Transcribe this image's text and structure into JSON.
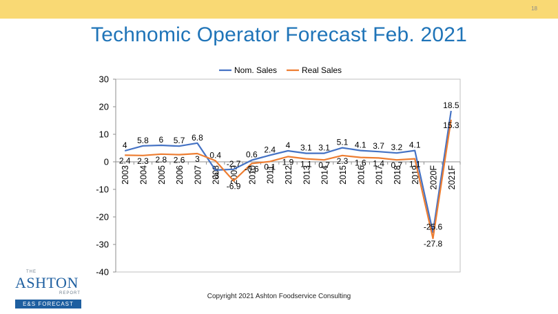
{
  "slide": {
    "page_number": "18",
    "title": "Technomic Operator Forecast Feb. 2021",
    "copyright": "Copyright 2021 Ashton Foodservice Consulting"
  },
  "logo": {
    "the": "THE",
    "name": "ASHTON",
    "report": "REPORT",
    "tagline": "E&S FORECAST"
  },
  "colors": {
    "top_bar": "#F9D974",
    "title": "#1F74B8",
    "nom_sales": "#4472C4",
    "real_sales": "#ED7D31"
  },
  "chart_data": {
    "type": "line",
    "title": "",
    "xlabel": "",
    "ylabel": "",
    "ylim": [
      -40,
      30
    ],
    "yticks": [
      30,
      20,
      10,
      0,
      -10,
      -20,
      -30,
      -40
    ],
    "legend_position": "top",
    "categories": [
      "2003",
      "2004",
      "2005",
      "2006",
      "2007",
      "2008",
      "2009",
      "2010",
      "2011",
      "2012",
      "2013",
      "2014",
      "2015",
      "2016",
      "2017",
      "2018",
      "2019",
      "2020F",
      "2021F"
    ],
    "series": [
      {
        "name": "Nom. Sales",
        "color": "#4472C4",
        "values": [
          4,
          5.8,
          6,
          5.7,
          6.8,
          -3,
          -2.7,
          0.6,
          2.4,
          4,
          3.1,
          3.1,
          5.1,
          4.1,
          3.7,
          3.2,
          4.1,
          -25.6,
          18.5
        ],
        "labels": [
          "4",
          "5.8",
          "6",
          "5.7",
          "6.8",
          "-3",
          "-2.7",
          "0.6",
          "2.4",
          "4",
          "3.1",
          "3.1",
          "5.1",
          "4.1",
          "3.7",
          "3.2",
          "4.1",
          "-25.6",
          "18.5"
        ]
      },
      {
        "name": "Real Sales",
        "color": "#ED7D31",
        "values": [
          2.4,
          2.3,
          2.8,
          2.6,
          3,
          0.4,
          -6.9,
          -0.6,
          0.1,
          1.9,
          1.1,
          0.7,
          2.3,
          1.6,
          1.4,
          0.7,
          1.1,
          -27.8,
          15.3
        ],
        "labels": [
          "2.4",
          "2.3",
          "2.8",
          "2.6",
          "3",
          "0.4",
          "-6.9",
          "-0.6",
          "0.1",
          "1.9",
          "1.1",
          "0.7",
          "2.3",
          "1.6",
          "1.4",
          "0.7",
          "1.1",
          "-27.8",
          "15.3"
        ]
      }
    ]
  }
}
